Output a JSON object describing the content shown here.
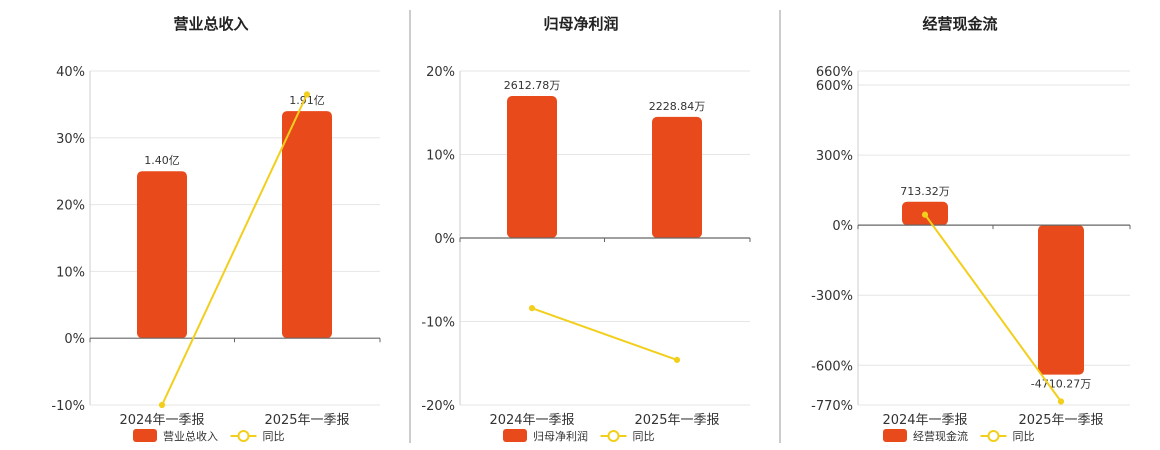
{
  "colors": {
    "bar": "#E84A1B",
    "line": "#F2CF1C",
    "grid": "#E6E6E6",
    "axis": "#666666",
    "divider": "#999999"
  },
  "chart_data": [
    {
      "type": "bar",
      "title": "营业总收入",
      "categories": [
        "2024年一季报",
        "2025年一季报"
      ],
      "y_ticks": [
        "40%",
        "30%",
        "20%",
        "10%",
        "0%",
        "-10%"
      ],
      "ylim": [
        -10,
        40
      ],
      "series": [
        {
          "name": "营业总收入",
          "kind": "bar",
          "values": [
            25,
            34
          ],
          "labels": [
            "1.40亿",
            "1.91亿"
          ]
        },
        {
          "name": "同比",
          "kind": "line",
          "values": [
            -10,
            36.5
          ]
        }
      ]
    },
    {
      "type": "bar",
      "title": "归母净利润",
      "categories": [
        "2024年一季报",
        "2025年一季报"
      ],
      "y_ticks": [
        "20%",
        "10%",
        "0%",
        "-10%",
        "-20%"
      ],
      "ylim": [
        -20,
        20
      ],
      "series": [
        {
          "name": "归母净利润",
          "kind": "bar",
          "values": [
            17,
            14.5
          ],
          "labels": [
            "2612.78万",
            "2228.84万"
          ]
        },
        {
          "name": "同比",
          "kind": "line",
          "values": [
            -8.4,
            -14.6
          ]
        }
      ]
    },
    {
      "type": "bar",
      "title": "经营现金流",
      "categories": [
        "2024年一季报",
        "2025年一季报"
      ],
      "y_ticks": [
        "660%",
        "600%",
        "300%",
        "0%",
        "-300%",
        "-600%",
        "-770%"
      ],
      "ylim": [
        -770,
        660
      ],
      "series": [
        {
          "name": "经营现金流",
          "kind": "bar",
          "values": [
            100,
            -640
          ],
          "labels": [
            "713.32万",
            "-4710.27万"
          ]
        },
        {
          "name": "同比",
          "kind": "line",
          "values": [
            45,
            -755
          ]
        }
      ]
    }
  ]
}
